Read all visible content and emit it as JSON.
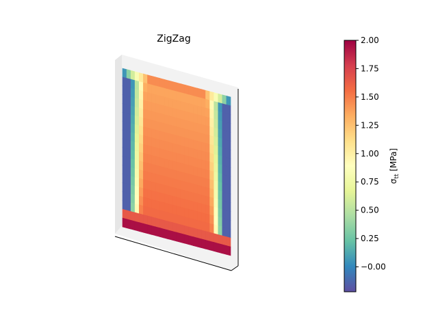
{
  "chart_data": {
    "type": "heatmap",
    "title": "ZigZag",
    "colormap": "Spectral_r",
    "colorbar": {
      "label": "σ_tt [MPa]",
      "label_main": "σ",
      "label_sub": "tt",
      "label_unit": " [MPa]",
      "vmin": -0.22,
      "vmax": 2.0,
      "ticks": [
        -0.0,
        0.25,
        0.5,
        0.75,
        1.0,
        1.25,
        1.5,
        1.75,
        2.0
      ],
      "tick_labels": [
        "−0.00",
        "0.25",
        "0.50",
        "0.75",
        "1.00",
        "1.25",
        "1.50",
        "1.75",
        "2.00"
      ]
    },
    "field": {
      "description_of_values": "stress per layer: low at left/right edges, high in core",
      "rows": 18,
      "cols": 26,
      "edge_value": -0.15,
      "core_value_top": 1.35,
      "core_value_bottom": 1.6,
      "bottom_layer_value": 1.95,
      "bottom_layer2_value": 1.65
    }
  }
}
